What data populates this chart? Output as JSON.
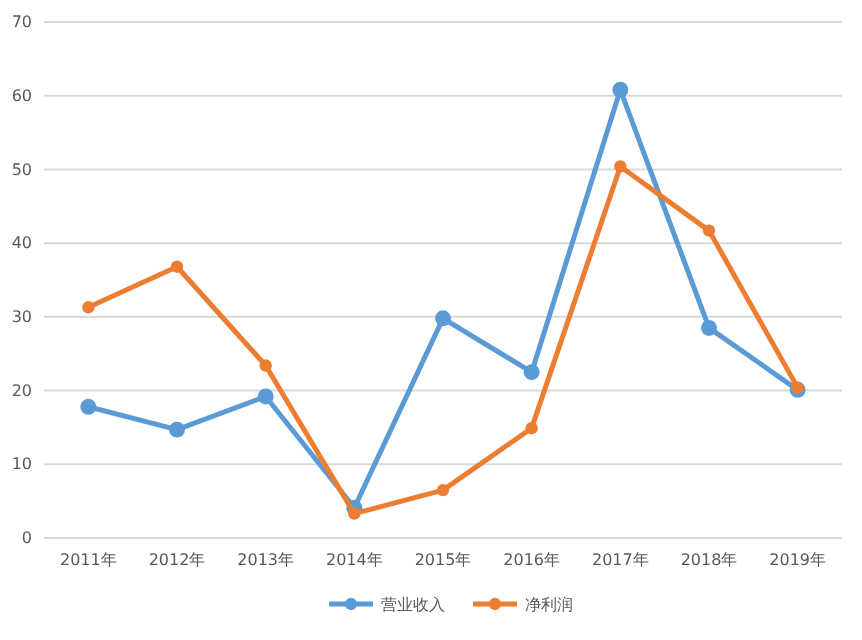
{
  "chart_data": {
    "type": "line",
    "categories": [
      "2011年",
      "2012年",
      "2013年",
      "2014年",
      "2015年",
      "2016年",
      "2017年",
      "2018年",
      "2019年"
    ],
    "series": [
      {
        "name": "营业收入",
        "color": "#5b9bd5",
        "values": [
          17.8,
          14.7,
          19.2,
          4.1,
          29.8,
          22.5,
          60.8,
          28.5,
          20.1
        ]
      },
      {
        "name": "净利润",
        "color": "#ed7d31",
        "values": [
          31.3,
          36.8,
          23.4,
          3.3,
          6.5,
          14.9,
          50.4,
          41.7,
          20.4
        ]
      }
    ],
    "ylim": [
      0,
      70
    ],
    "yticks": [
      0,
      10,
      20,
      30,
      40,
      50,
      60,
      70
    ],
    "grid": "y",
    "legend": "bottom",
    "marker": "circle",
    "line_style": "solid"
  }
}
